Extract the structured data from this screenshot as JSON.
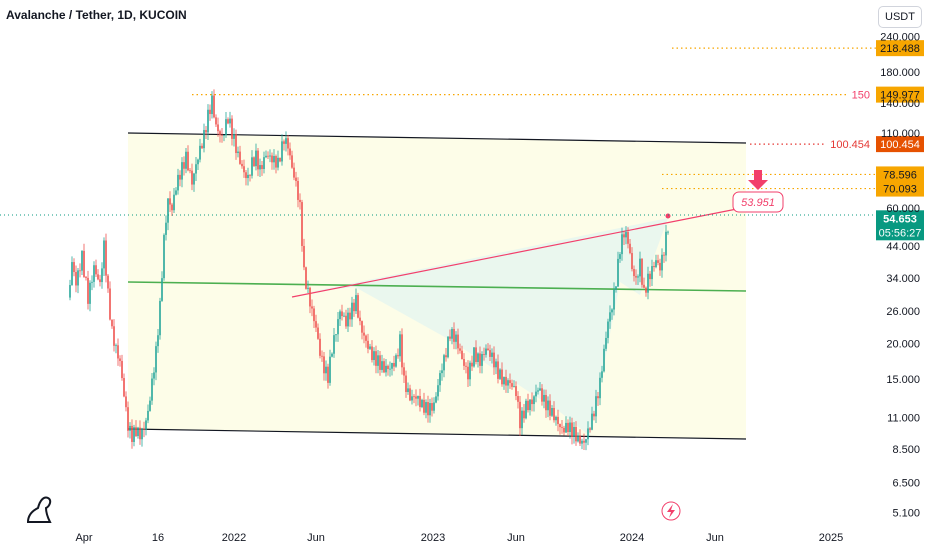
{
  "header": {
    "title": "Avalanche / Tether, 1D, KUCOIN",
    "currency": "USDT"
  },
  "chart_data": {
    "type": "candlestick",
    "y_scale": "log",
    "ylim": [
      4.6,
      270
    ],
    "y_ticks": [
      "240.000",
      "180.000",
      "140.000",
      "110.000",
      "60.000",
      "44.000",
      "34.000",
      "26.000",
      "20.000",
      "15.000",
      "11.000",
      "8.500",
      "6.500",
      "5.100"
    ],
    "x_ticks": [
      "Apr",
      "16",
      "2022",
      "Jun",
      "2023",
      "Jun",
      "2024",
      "Jun",
      "2025"
    ],
    "price_labels": [
      {
        "value": "218.488",
        "kind": "orange-level"
      },
      {
        "value": "149.977",
        "kind": "orange-level",
        "note": "150"
      },
      {
        "value": "100.454",
        "kind": "red-level",
        "note": "100.454"
      },
      {
        "value": "78.596",
        "kind": "orange-level"
      },
      {
        "value": "70.093",
        "kind": "orange-level"
      }
    ],
    "current_price": {
      "value": "54.653",
      "countdown": "05:56:27"
    },
    "target_label": "53.951",
    "key_levels": [
      218.488,
      149.977,
      100.454,
      78.596,
      70.093,
      54.653
    ],
    "colors": {
      "up": "#26a69a",
      "down": "#ef5350",
      "orange": "#f7a600",
      "red_level": "#e65100",
      "pink_line": "#f23f6b",
      "green_line": "#4caf50",
      "current": "#089981"
    }
  }
}
